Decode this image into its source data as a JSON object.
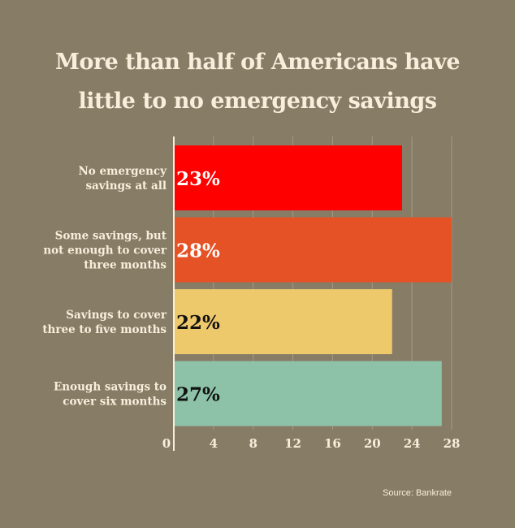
{
  "chart_data": {
    "type": "bar",
    "orientation": "horizontal",
    "title_lines": [
      "More than half of Americans have",
      "little to no emergency savings"
    ],
    "categories": [
      [
        "No emergency",
        "savings at all"
      ],
      [
        "Some savings, but",
        "not enough to cover",
        "three months"
      ],
      [
        "Savings to cover",
        "three to five months"
      ],
      [
        "Enough savings to",
        "cover six months"
      ]
    ],
    "values": [
      23,
      28,
      22,
      27
    ],
    "value_labels": [
      "23%",
      "28%",
      "22%",
      "27%"
    ],
    "colors": [
      "#fe0000",
      "#e55226",
      "#eec96c",
      "#8dc2a8"
    ],
    "value_label_colors": [
      "#ffffff",
      "#ffffff",
      "#111111",
      "#111111"
    ],
    "xlim": [
      0,
      28
    ],
    "xticks": [
      0,
      4,
      8,
      12,
      16,
      20,
      24,
      28
    ],
    "xtick_labels": [
      "0",
      "4",
      "8",
      "12",
      "16",
      "20",
      "24",
      "28"
    ],
    "grid": true,
    "source": "Source: Bankrate"
  }
}
